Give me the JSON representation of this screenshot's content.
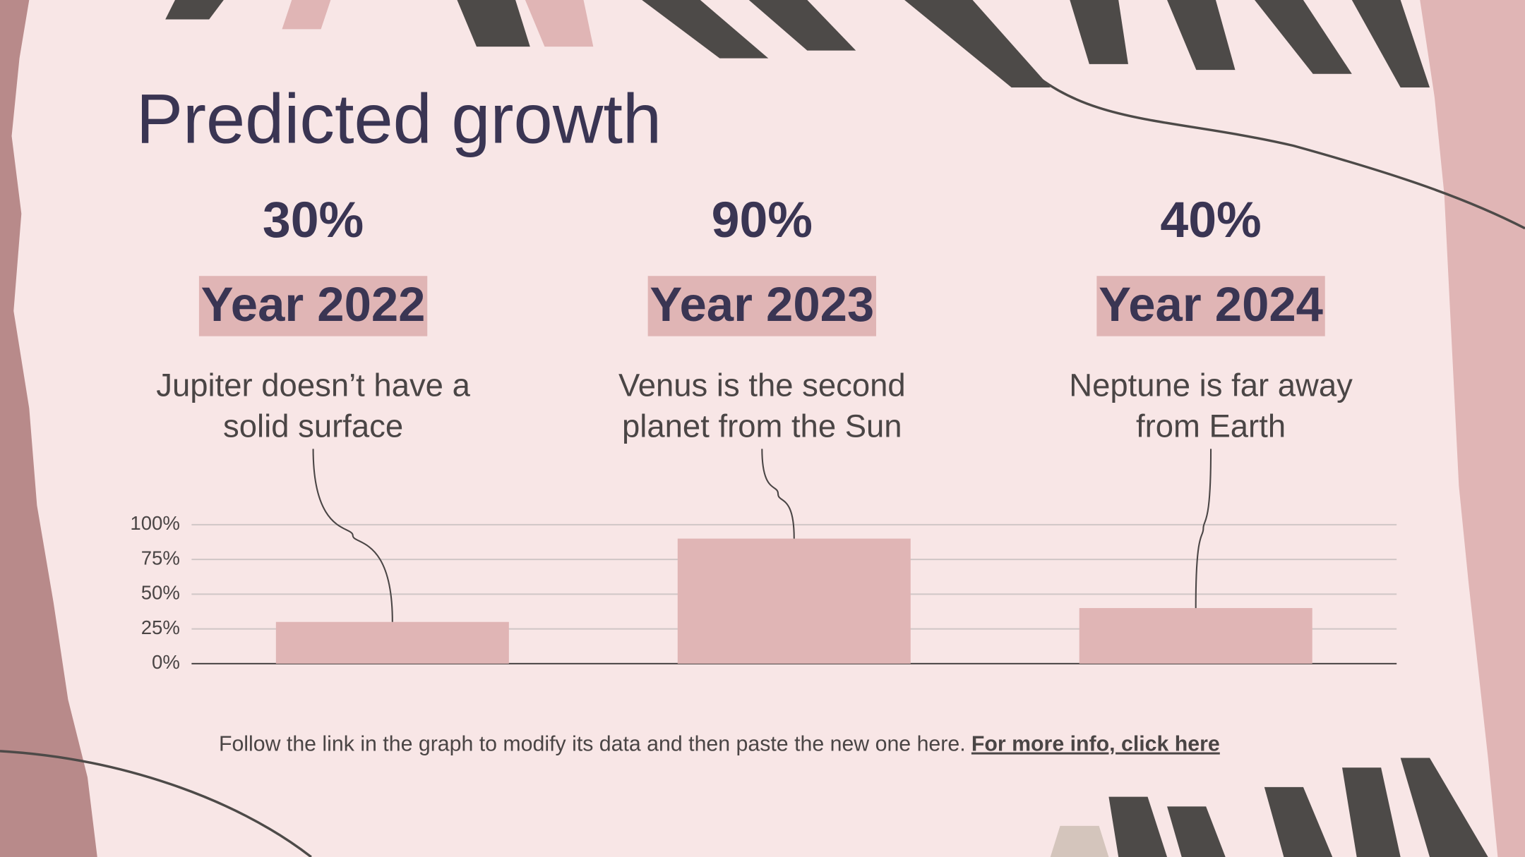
{
  "chart_data": {
    "type": "bar",
    "title": "Predicted growth",
    "categories": [
      "Year 2022",
      "Year 2023",
      "Year 2024"
    ],
    "values": [
      30,
      90,
      40
    ],
    "value_labels": [
      "30%",
      "90%",
      "40%"
    ],
    "descriptions": [
      [
        "Jupiter doesn’t have a",
        "solid surface"
      ],
      [
        "Venus is the second",
        "planet from the Sun"
      ],
      [
        "Neptune is far away",
        "from Earth"
      ]
    ],
    "color": "#e0b5b5",
    "ylim": [
      0,
      100
    ],
    "yticks": [
      {
        "value": 0,
        "label": "0%"
      },
      {
        "value": 25,
        "label": "25%"
      },
      {
        "value": 50,
        "label": "50%"
      },
      {
        "value": 75,
        "label": "75%"
      },
      {
        "value": 100,
        "label": "100%"
      }
    ],
    "grid": true
  },
  "footer": {
    "text": "Follow the link in the graph to modify its data and then paste the new one here.",
    "link": "For more info, click here"
  }
}
